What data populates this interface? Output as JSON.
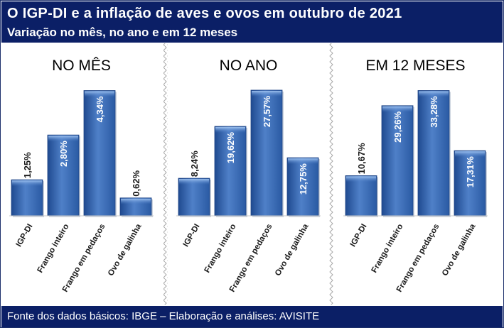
{
  "header": {
    "title": "O IGP-DI e a inflação de aves e ovos em outubro de 2021",
    "subtitle": "Variação no mês, no ano e em 12 meses"
  },
  "footer": {
    "source": "Fonte dos dados básicos: IBGE – Elaboração e análises: AVISITE"
  },
  "colors": {
    "header_bg": "#0b1f66",
    "bar_fill": "#2f5faa",
    "bar_highlight": "#6f9ad8",
    "divider": "#b5b5b5"
  },
  "chart_data": [
    {
      "type": "bar",
      "title": "NO MÊS",
      "categories": [
        "IGP-DI",
        "Frango inteiro",
        "Frango em pedaços",
        "Ovo de galinha"
      ],
      "values": [
        1.25,
        2.8,
        4.34,
        0.62
      ],
      "labels": [
        "1,25%",
        "2,80%",
        "4,34%",
        "0,62%"
      ],
      "ylim": [
        0,
        4.5
      ]
    },
    {
      "type": "bar",
      "title": "NO ANO",
      "categories": [
        "IGP-DI",
        "Frango inteiro",
        "Frango em pedaços",
        "Ovo de galinha"
      ],
      "values": [
        8.24,
        19.62,
        27.57,
        12.75
      ],
      "labels": [
        "8,24%",
        "19,62%",
        "27,57%",
        "12,75%"
      ],
      "ylim": [
        0,
        28.5
      ]
    },
    {
      "type": "bar",
      "title": "EM 12 MESES",
      "categories": [
        "IGP-DI",
        "Frango inteiro",
        "Frango em pedaços",
        "Ovo de galinha"
      ],
      "values": [
        10.67,
        29.26,
        33.28,
        17.31
      ],
      "labels": [
        "10,67%",
        "29,26%",
        "33,28%",
        "17,31%"
      ],
      "ylim": [
        0,
        34.5
      ]
    }
  ]
}
